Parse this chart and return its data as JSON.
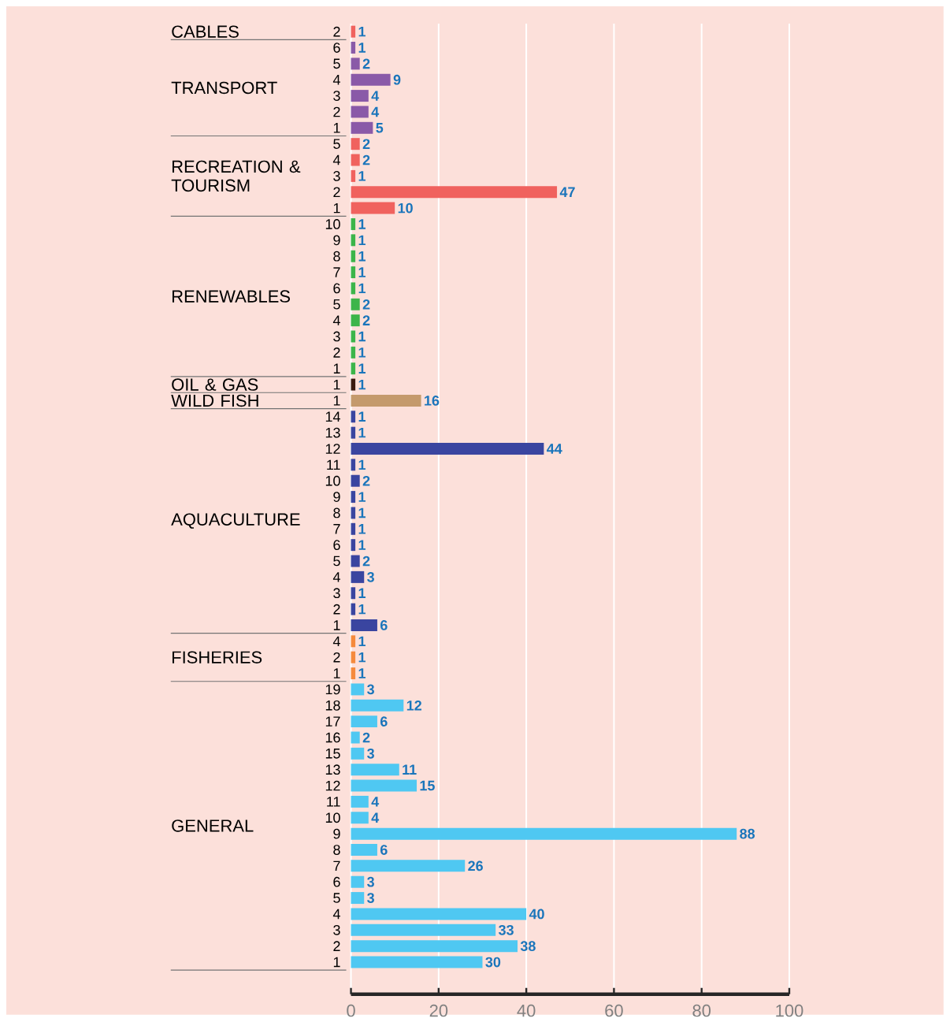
{
  "chart_data": {
    "type": "bar",
    "orientation": "horizontal",
    "data_labels": true,
    "grid": "x",
    "categories": [
      "2",
      "6",
      "5",
      "4",
      "3",
      "2",
      "1",
      "5",
      "4",
      "3",
      "2",
      "1",
      "10",
      "9",
      "8",
      "7",
      "6",
      "5",
      "4",
      "3",
      "2",
      "1",
      "1",
      "1",
      "14",
      "13",
      "12",
      "11",
      "10",
      "9",
      "8",
      "7",
      "6",
      "5",
      "4",
      "3",
      "2",
      "1",
      "4",
      "2",
      "1",
      "19",
      "18",
      "17",
      "16",
      "15",
      "13",
      "12",
      "11",
      "10",
      "9",
      "8",
      "7",
      "6",
      "5",
      "4",
      "3",
      "2",
      "1"
    ],
    "annotations": [
      "CABLES",
      "TRANSPORT",
      "RECREATION & TOURISM",
      "RENEWABLES",
      "OIL & GAS",
      "WILD FISH",
      "AQUACULTURE",
      "FISHERIES",
      "GENERAL"
    ],
    "xlim": [
      0,
      100
    ],
    "xticks": [
      0,
      20,
      40,
      60,
      80,
      100
    ],
    "series": [
      {
        "color": "#f0625e",
        "values": [
          1,
          null,
          null,
          null,
          null,
          null,
          null,
          null,
          null,
          null,
          null,
          null,
          null,
          null,
          null,
          null,
          null,
          null,
          null,
          null,
          null,
          null,
          null,
          null,
          null,
          null,
          null,
          null,
          null,
          null,
          null,
          null,
          null,
          null,
          null,
          null,
          null,
          null,
          null,
          null,
          null,
          null,
          null,
          null,
          null,
          null,
          null,
          null,
          null,
          null,
          null,
          null,
          null,
          null,
          null,
          null,
          null,
          null,
          null
        ]
      },
      {
        "color": "#8a5aa8",
        "values": [
          null,
          1,
          2,
          9,
          4,
          4,
          5,
          null,
          null,
          null,
          null,
          null,
          null,
          null,
          null,
          null,
          null,
          null,
          null,
          null,
          null,
          null,
          null,
          null,
          null,
          null,
          null,
          null,
          null,
          null,
          null,
          null,
          null,
          null,
          null,
          null,
          null,
          null,
          null,
          null,
          null,
          null,
          null,
          null,
          null,
          null,
          null,
          null,
          null,
          null,
          null,
          null,
          null,
          null,
          null,
          null,
          null,
          null,
          null
        ]
      },
      {
        "color": "#f0625e",
        "values": [
          null,
          null,
          null,
          null,
          null,
          null,
          null,
          2,
          2,
          1,
          47,
          10,
          null,
          null,
          null,
          null,
          null,
          null,
          null,
          null,
          null,
          null,
          null,
          null,
          null,
          null,
          null,
          null,
          null,
          null,
          null,
          null,
          null,
          null,
          null,
          null,
          null,
          null,
          null,
          null,
          null,
          null,
          null,
          null,
          null,
          null,
          null,
          null,
          null,
          null,
          null,
          null,
          null,
          null,
          null,
          null,
          null,
          null,
          null
        ]
      },
      {
        "color": "#3cb54a",
        "values": [
          null,
          null,
          null,
          null,
          null,
          null,
          null,
          null,
          null,
          null,
          null,
          null,
          1,
          1,
          1,
          1,
          1,
          2,
          2,
          1,
          1,
          1,
          null,
          null,
          null,
          null,
          null,
          null,
          null,
          null,
          null,
          null,
          null,
          null,
          null,
          null,
          null,
          null,
          null,
          null,
          null,
          null,
          null,
          null,
          null,
          null,
          null,
          null,
          null,
          null,
          null,
          null,
          null,
          null,
          null,
          null,
          null,
          null,
          null
        ]
      },
      {
        "color": "#3a1a10",
        "values": [
          null,
          null,
          null,
          null,
          null,
          null,
          null,
          null,
          null,
          null,
          null,
          null,
          null,
          null,
          null,
          null,
          null,
          null,
          null,
          null,
          null,
          null,
          1,
          null,
          null,
          null,
          null,
          null,
          null,
          null,
          null,
          null,
          null,
          null,
          null,
          null,
          null,
          null,
          null,
          null,
          null,
          null,
          null,
          null,
          null,
          null,
          null,
          null,
          null,
          null,
          null,
          null,
          null,
          null,
          null,
          null,
          null,
          null,
          null
        ]
      },
      {
        "color": "#c49a6c",
        "values": [
          null,
          null,
          null,
          null,
          null,
          null,
          null,
          null,
          null,
          null,
          null,
          null,
          null,
          null,
          null,
          null,
          null,
          null,
          null,
          null,
          null,
          null,
          null,
          16,
          null,
          null,
          null,
          null,
          null,
          null,
          null,
          null,
          null,
          null,
          null,
          null,
          null,
          null,
          null,
          null,
          null,
          null,
          null,
          null,
          null,
          null,
          null,
          null,
          null,
          null,
          null,
          null,
          null,
          null,
          null,
          null,
          null,
          null,
          null
        ]
      },
      {
        "color": "#3a45a0",
        "values": [
          null,
          null,
          null,
          null,
          null,
          null,
          null,
          null,
          null,
          null,
          null,
          null,
          null,
          null,
          null,
          null,
          null,
          null,
          null,
          null,
          null,
          null,
          null,
          null,
          1,
          1,
          44,
          1,
          2,
          1,
          1,
          1,
          1,
          2,
          3,
          1,
          1,
          6,
          null,
          null,
          null,
          null,
          null,
          null,
          null,
          null,
          null,
          null,
          null,
          null,
          null,
          null,
          null,
          null,
          null,
          null,
          null,
          null,
          null
        ]
      },
      {
        "color": "#f58a3c",
        "values": [
          null,
          null,
          null,
          null,
          null,
          null,
          null,
          null,
          null,
          null,
          null,
          null,
          null,
          null,
          null,
          null,
          null,
          null,
          null,
          null,
          null,
          null,
          null,
          null,
          null,
          null,
          null,
          null,
          null,
          null,
          null,
          null,
          null,
          null,
          null,
          null,
          null,
          null,
          1,
          1,
          1,
          null,
          null,
          null,
          null,
          null,
          null,
          null,
          null,
          null,
          null,
          null,
          null,
          null,
          null,
          null,
          null,
          null,
          null
        ]
      },
      {
        "color": "#4fc8f2",
        "values": [
          null,
          null,
          null,
          null,
          null,
          null,
          null,
          null,
          null,
          null,
          null,
          null,
          null,
          null,
          null,
          null,
          null,
          null,
          null,
          null,
          null,
          null,
          null,
          null,
          null,
          null,
          null,
          null,
          null,
          null,
          null,
          null,
          null,
          null,
          null,
          null,
          null,
          null,
          null,
          null,
          null,
          3,
          12,
          6,
          2,
          3,
          11,
          15,
          4,
          4,
          88,
          6,
          26,
          3,
          3,
          40,
          33,
          38,
          30
        ]
      }
    ]
  }
}
